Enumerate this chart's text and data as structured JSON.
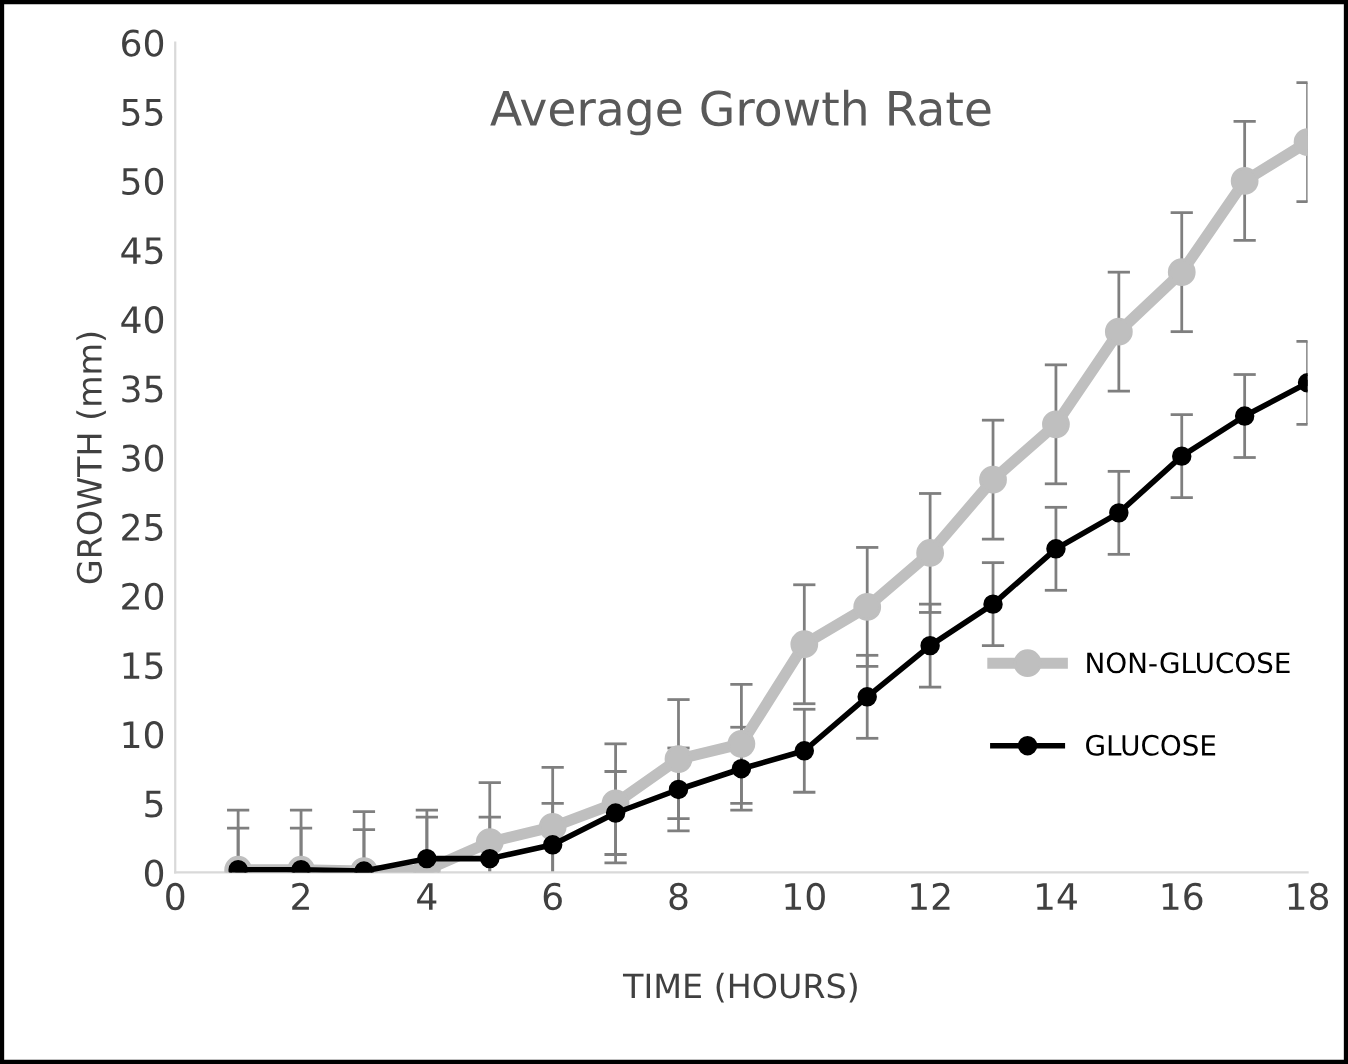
{
  "chart_data": {
    "type": "line",
    "title": "Average Growth Rate",
    "xlabel": "TIME (HOURS)",
    "ylabel": "GROWTH (mm)",
    "x": [
      1,
      2,
      3,
      4,
      5,
      6,
      7,
      8,
      9,
      10,
      11,
      12,
      13,
      14,
      15,
      16,
      17,
      18
    ],
    "series": [
      {
        "name": "NON-GLUCOSE",
        "color": "#bfbfbf",
        "values": [
          0.2,
          0.2,
          0.1,
          0.2,
          2.2,
          3.3,
          5.0,
          8.2,
          9.3,
          16.5,
          19.2,
          23.1,
          28.4,
          32.4,
          39.1,
          43.4,
          50.0,
          52.8
        ],
        "errors": [
          4.3,
          4.3,
          4.3,
          4.3,
          4.3,
          4.3,
          4.3,
          4.3,
          4.3,
          4.3,
          4.3,
          4.3,
          4.3,
          4.3,
          4.3,
          4.3,
          4.3,
          4.3
        ]
      },
      {
        "name": "GLUCOSE",
        "color": "#000000",
        "values": [
          0.2,
          0.2,
          0.1,
          1.0,
          1.0,
          2.0,
          4.3,
          6.0,
          7.5,
          8.8,
          12.7,
          16.4,
          19.4,
          23.4,
          26.0,
          30.1,
          33.0,
          35.4
        ],
        "errors": [
          3,
          3,
          3,
          3,
          3,
          3,
          3,
          3,
          3,
          3,
          3,
          3,
          3,
          3,
          3,
          3,
          3,
          3
        ]
      }
    ],
    "xlim": [
      0,
      18
    ],
    "xticks": [
      0,
      2,
      4,
      6,
      8,
      10,
      12,
      14,
      16,
      18
    ],
    "ylim": [
      0,
      60
    ],
    "yticks": [
      0,
      5,
      10,
      15,
      20,
      25,
      30,
      35,
      40,
      45,
      50,
      55,
      60
    ],
    "grid": false,
    "legend": "right",
    "marker": "circle",
    "line_style": "solid"
  }
}
